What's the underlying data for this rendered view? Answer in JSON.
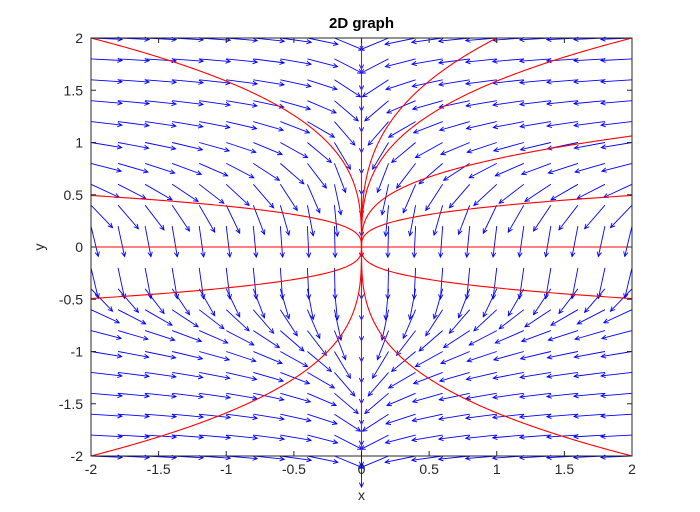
{
  "chart_data": {
    "type": "quiver-streamline",
    "title": "2D graph",
    "xlabel": "x",
    "ylabel": "y",
    "xlim": [
      -2,
      2
    ],
    "ylim": [
      -2,
      2
    ],
    "x_ticks": [
      -2,
      -1.5,
      -1,
      -0.5,
      0,
      0.5,
      1,
      1.5,
      2
    ],
    "x_tick_labels": [
      "-2",
      "-1.5",
      "-1",
      "-0.5",
      "0",
      "0.5",
      "1",
      "1.5",
      "2"
    ],
    "y_ticks": [
      -2,
      -1.5,
      -1,
      -0.5,
      0,
      0.5,
      1,
      1.5,
      2
    ],
    "y_tick_labels": [
      "-2",
      "-1.5",
      "-1",
      "-0.5",
      "0",
      "0.5",
      "1",
      "1.5",
      "2"
    ],
    "grid": false,
    "legend": "none",
    "colors": {
      "vector_field": "#0000ff",
      "trajectories": "#ff0000",
      "axes": "#262626"
    },
    "vector_field": {
      "function": [
        "-x",
        "-1/(3*y^2)"
      ],
      "grid_x": [
        -2,
        -1.8,
        -1.6,
        -1.4,
        -1.2,
        -1,
        -0.8,
        -0.6,
        -0.4,
        -0.2,
        0,
        0.2,
        0.4,
        0.6,
        0.8,
        1,
        1.2,
        1.4,
        1.6,
        1.8,
        2
      ],
      "grid_y": [
        -2,
        -1.8,
        -1.6,
        -1.4,
        -1.2,
        -1,
        -0.8,
        -0.6,
        -0.4,
        -0.2,
        0,
        0.2,
        0.4,
        0.6,
        0.8,
        1,
        1.2,
        1.4,
        1.6,
        1.8,
        2
      ]
    },
    "trajectories": [
      {
        "relation": "y^3 = c*x",
        "c": 8,
        "branch": "x>0"
      },
      {
        "relation": "y^3 = c*x",
        "c": 4,
        "branch": "x>0"
      },
      {
        "relation": "y^3 = c*x",
        "c": 0.6,
        "branch": "x>0"
      },
      {
        "relation": "y^3 = c*x",
        "c": 0.06,
        "branch": "x>0"
      },
      {
        "relation": "y^3 = c*x",
        "c": -0.06,
        "branch": "x>0"
      },
      {
        "relation": "y^3 = c*x",
        "c": -4,
        "branch": "x>0"
      },
      {
        "relation": "y^3 = c*x",
        "c": -4,
        "branch": "x<0"
      },
      {
        "relation": "y^3 = c*x",
        "c": -0.06,
        "branch": "x<0"
      },
      {
        "relation": "y^3 = c*x",
        "c": 0.06,
        "branch": "x<0"
      },
      {
        "relation": "y^3 = c*x",
        "c": 4,
        "branch": "x<0"
      },
      {
        "relation": "y = 0"
      },
      {
        "relation": "x = 0"
      }
    ]
  }
}
